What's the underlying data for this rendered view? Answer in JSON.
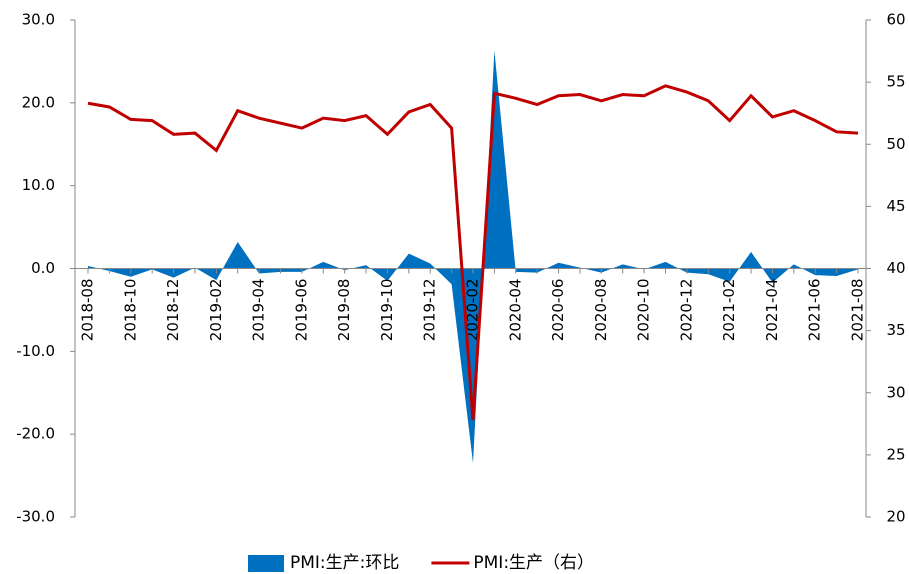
{
  "chart_data": {
    "type": "line-area",
    "categories": [
      "2018-08",
      null,
      "2018-10",
      null,
      "2018-12",
      null,
      "2019-02",
      null,
      "2019-04",
      null,
      "2019-06",
      null,
      "2019-08",
      null,
      "2019-10",
      null,
      "2019-12",
      null,
      "2020-02",
      null,
      "2020-04",
      null,
      "2020-06",
      null,
      "2020-08",
      null,
      "2020-10",
      null,
      "2020-12",
      null,
      "2021-02",
      null,
      "2021-04",
      null,
      "2021-06",
      null,
      "2021-08"
    ],
    "series": [
      {
        "name": "PMI:生产:环比",
        "type": "area",
        "color": "#0070c0",
        "axis": "y",
        "values": [
          0.3,
          -0.3,
          -1.0,
          -0.1,
          -1.1,
          0.1,
          -1.4,
          3.2,
          -0.6,
          -0.4,
          -0.4,
          0.8,
          -0.2,
          0.4,
          -1.5,
          1.8,
          0.6,
          -1.9,
          -23.5,
          26.3,
          -0.4,
          -0.5,
          0.7,
          0.1,
          -0.5,
          0.5,
          -0.1,
          0.8,
          -0.5,
          -0.7,
          -1.6,
          2.0,
          -1.7,
          0.5,
          -0.8,
          -0.9,
          -0.1
        ]
      },
      {
        "name": "PMI:生产（右）",
        "type": "line",
        "color": "#c00000",
        "axis": "y2",
        "values": [
          53.3,
          53.0,
          52.0,
          51.9,
          50.8,
          50.9,
          49.5,
          52.7,
          52.1,
          51.7,
          51.3,
          52.1,
          51.9,
          52.3,
          50.8,
          52.6,
          53.2,
          51.3,
          27.8,
          54.1,
          53.7,
          53.2,
          53.9,
          54.0,
          53.5,
          54.0,
          53.9,
          54.7,
          54.2,
          53.5,
          51.9,
          53.9,
          52.2,
          52.7,
          51.9,
          51.0,
          50.9
        ]
      }
    ],
    "ylim": [
      -30,
      30
    ],
    "yticks": [
      {
        "value": -30,
        "label": "-30.0"
      },
      {
        "value": -20,
        "label": "-20.0"
      },
      {
        "value": -10,
        "label": "-10.0"
      },
      {
        "value": 0,
        "label": "0.0"
      },
      {
        "value": 10,
        "label": "10.0"
      },
      {
        "value": 20,
        "label": "20.0"
      },
      {
        "value": 30,
        "label": "30.0"
      }
    ],
    "y2lim": [
      20,
      60
    ],
    "y2ticks": [
      20,
      25,
      30,
      35,
      40,
      45,
      50,
      55,
      60
    ],
    "legend": "bottom"
  }
}
